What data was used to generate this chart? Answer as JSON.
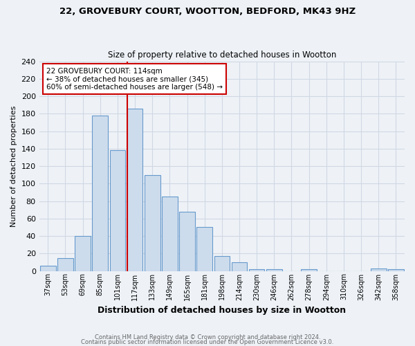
{
  "title1": "22, GROVEBURY COURT, WOOTTON, BEDFORD, MK43 9HZ",
  "title2": "Size of property relative to detached houses in Wootton",
  "xlabel": "Distribution of detached houses by size in Wootton",
  "ylabel": "Number of detached properties",
  "categories": [
    "37sqm",
    "53sqm",
    "69sqm",
    "85sqm",
    "101sqm",
    "117sqm",
    "133sqm",
    "149sqm",
    "165sqm",
    "181sqm",
    "198sqm",
    "214sqm",
    "230sqm",
    "246sqm",
    "262sqm",
    "278sqm",
    "294sqm",
    "310sqm",
    "326sqm",
    "342sqm",
    "358sqm"
  ],
  "values": [
    6,
    15,
    40,
    178,
    138,
    186,
    110,
    85,
    68,
    50,
    17,
    10,
    2,
    2,
    0,
    2,
    0,
    0,
    0,
    3,
    2
  ],
  "bar_color": "#cddcec",
  "bar_edge_color": "#6699cc",
  "annotation_title": "22 GROVEBURY COURT: 114sqm",
  "annotation_line1": "← 38% of detached houses are smaller (345)",
  "annotation_line2": "60% of semi-detached houses are larger (548) →",
  "red_line_color": "#cc0000",
  "annotation_box_color": "#ffffff",
  "annotation_box_edge": "#cc0000",
  "ylim": [
    0,
    240
  ],
  "yticks": [
    0,
    20,
    40,
    60,
    80,
    100,
    120,
    140,
    160,
    180,
    200,
    220,
    240
  ],
  "footer1": "Contains HM Land Registry data © Crown copyright and database right 2024.",
  "footer2": "Contains public sector information licensed under the Open Government Licence v3.0.",
  "background_color": "#eef2f7",
  "plot_background": "#eef2f7",
  "grid_color": "#d0d8e4"
}
